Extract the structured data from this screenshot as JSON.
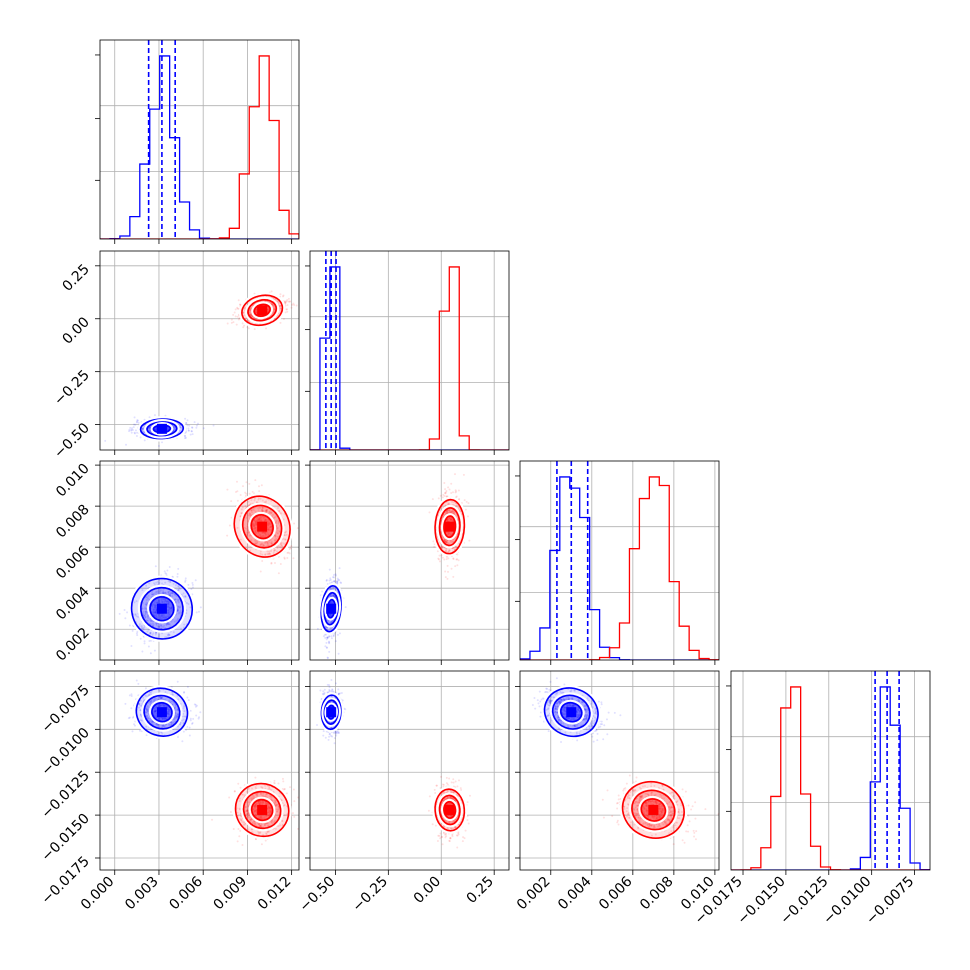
{
  "colors": {
    "blue": "#0000ff",
    "red": "#ff0000",
    "grid": "#b0b0b0"
  },
  "chart_data": {
    "type": "corner",
    "parameters": 4,
    "grid": true,
    "ranges": [
      [
        -0.001,
        0.0125
      ],
      [
        -0.62,
        0.32
      ],
      [
        0.0005,
        0.0102
      ],
      [
        -0.0182,
        -0.0066
      ]
    ],
    "ticks": [
      [
        "0.000",
        "0.003",
        "0.006",
        "0.009",
        "0.012"
      ],
      [
        "−0.50",
        "−0.25",
        "0.00",
        "0.25"
      ],
      [
        "0.002",
        "0.004",
        "0.006",
        "0.008",
        "0.010"
      ],
      [
        "−0.0175",
        "−0.0150",
        "−0.0125",
        "−0.0100",
        "−0.0075"
      ]
    ],
    "series": [
      {
        "color": "blue",
        "means": [
          0.0032,
          -0.52,
          0.003,
          -0.009
        ],
        "sds": [
          0.0009,
          0.02,
          0.0007,
          0.0006
        ],
        "quantiles": [
          [
            0.0023,
            0.0032,
            0.0041
          ],
          [
            -0.545,
            -0.52,
            -0.497
          ],
          [
            0.0023,
            0.003,
            0.0038
          ],
          [
            -0.0098,
            -0.0091,
            -0.0084
          ]
        ]
      },
      {
        "color": "red",
        "means": [
          0.01,
          0.04,
          0.007,
          -0.0147
        ],
        "sds": [
          0.0008,
          0.03,
          0.0008,
          0.0007
        ],
        "quantiles": []
      }
    ]
  }
}
